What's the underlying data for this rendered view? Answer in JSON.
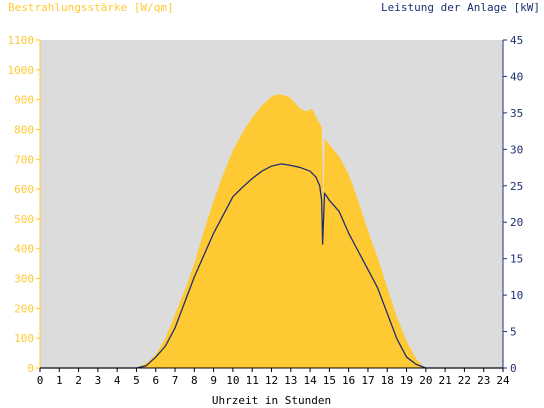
{
  "chart_data": {
    "type": "area",
    "title_left": "Bestrahlungsstärke [W/qm]",
    "title_right": "Leistung der Anlage [kW]",
    "xlabel": "Uhrzeit in Stunden",
    "xlim": [
      0,
      24
    ],
    "x_ticks": [
      0,
      1,
      2,
      3,
      4,
      5,
      6,
      7,
      8,
      9,
      10,
      11,
      12,
      13,
      14,
      15,
      16,
      17,
      18,
      19,
      20,
      21,
      22,
      23,
      24
    ],
    "y_left": {
      "label": "Bestrahlungsstärke [W/qm]",
      "lim": [
        0,
        1100
      ],
      "ticks": [
        0,
        100,
        200,
        300,
        400,
        500,
        600,
        700,
        800,
        900,
        1000,
        1100
      ],
      "color": "#FFC933"
    },
    "y_right": {
      "label": "Leistung der Anlage [kW]",
      "lim": [
        0,
        45
      ],
      "ticks": [
        0,
        5,
        10,
        15,
        20,
        25,
        30,
        35,
        40,
        45
      ],
      "color": "#1F2F6F"
    },
    "grid": false,
    "background_color": "#DCDCDC",
    "series": [
      {
        "name": "Bestrahlungsstärke [W/qm]",
        "axis": "left",
        "kind": "area",
        "color": "#FFC933",
        "x": [
          0,
          5,
          5.3,
          5.6,
          6.0,
          6.5,
          7.0,
          7.5,
          8.0,
          8.5,
          9.0,
          9.5,
          10.0,
          10.5,
          11.0,
          11.5,
          12.0,
          12.3,
          12.6,
          12.9,
          13.2,
          13.5,
          13.8,
          14.1,
          14.4,
          14.6,
          14.65,
          14.7,
          14.75,
          15.0,
          15.5,
          16.0,
          16.5,
          17.0,
          17.5,
          18.0,
          18.5,
          19.0,
          19.5,
          19.8,
          20.0,
          24
        ],
        "y": [
          0,
          0,
          10,
          20,
          45,
          100,
          180,
          260,
          350,
          460,
          560,
          650,
          730,
          790,
          840,
          880,
          910,
          918,
          915,
          910,
          890,
          870,
          860,
          870,
          830,
          810,
          700,
          520,
          770,
          750,
          710,
          650,
          560,
          460,
          370,
          270,
          170,
          90,
          30,
          10,
          0,
          0
        ]
      },
      {
        "name": "Leistung der Anlage [kW]",
        "axis": "right",
        "kind": "line",
        "color": "#1F2F6F",
        "x": [
          0,
          5,
          5.5,
          6.0,
          6.5,
          7.0,
          7.5,
          8.0,
          8.5,
          9.0,
          9.5,
          10.0,
          10.5,
          11.0,
          11.5,
          12.0,
          12.5,
          13.0,
          13.5,
          14.0,
          14.3,
          14.5,
          14.6,
          14.65,
          14.75,
          15.0,
          15.5,
          16.0,
          16.5,
          17.0,
          17.5,
          18.0,
          18.5,
          19.0,
          19.5,
          20.0,
          24
        ],
        "y": [
          0,
          0,
          0.3,
          1.5,
          3,
          5.5,
          9,
          12.5,
          15.5,
          18.5,
          21,
          23.5,
          24.8,
          26,
          27,
          27.7,
          28,
          27.8,
          27.5,
          27,
          26.2,
          25,
          23,
          17,
          24,
          23,
          21.5,
          18.5,
          16,
          13.5,
          11,
          7.5,
          4,
          1.5,
          0.5,
          0,
          0
        ]
      }
    ]
  }
}
